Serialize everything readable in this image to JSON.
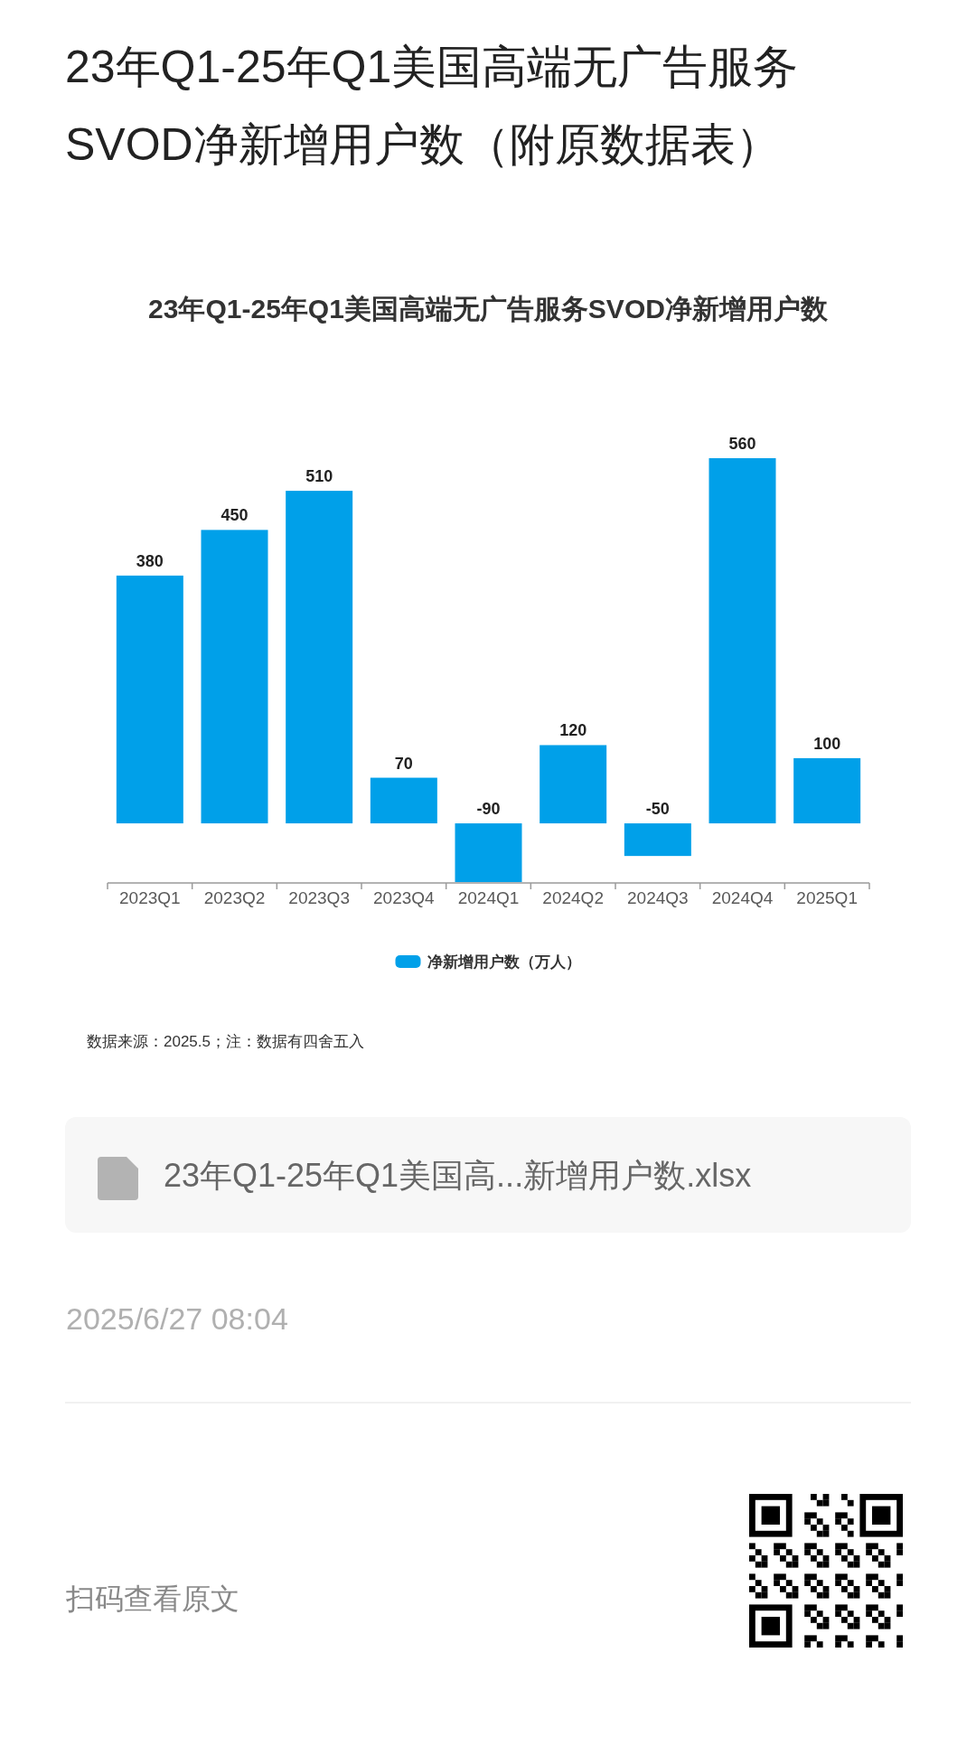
{
  "chart_data": {
    "type": "bar",
    "title": "23年Q1-25年Q1美国高端无广告服务SVOD净新增用户数（附原数据表）",
    "subtitle": "23年Q1-25年Q1美国高端无广告服务SVOD净新增用户数",
    "categories": [
      "2023Q1",
      "2023Q2",
      "2023Q3",
      "2023Q4",
      "2024Q1",
      "2024Q2",
      "2024Q3",
      "2024Q4",
      "2025Q1"
    ],
    "series": [
      {
        "name": "净新增用户数（万人）",
        "color": "#00a0e9",
        "values": [
          380,
          450,
          510,
          70,
          -90,
          120,
          -50,
          560,
          100
        ]
      }
    ],
    "data_labels": true,
    "legend": "bottom",
    "annotations": [
      "数据来源：2025.5；注：数据有四舍五入",
      "23年Q1-25年Q1美国高...新增用户数.xlsx",
      "2025/6/27 08:04",
      "扫码查看原文"
    ]
  }
}
